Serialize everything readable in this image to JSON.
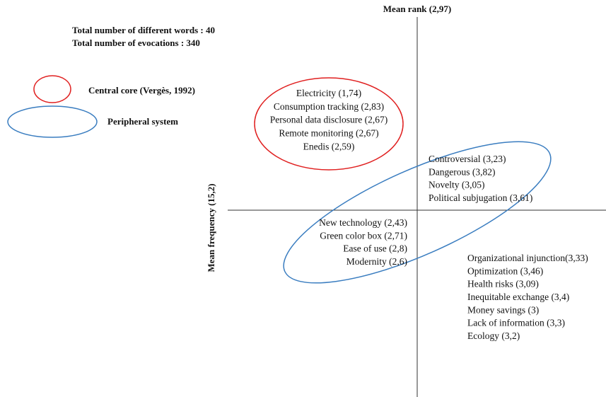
{
  "header": {
    "lines": [
      "Total number of different words : 40",
      "Total number of evocations : 340"
    ]
  },
  "legend": [
    {
      "label": "Central core (Vergès, 1992)"
    },
    {
      "label": "Peripheral system"
    }
  ],
  "axes": {
    "x_label": "Mean rank (2,97)",
    "y_label": "Mean frequency (15,2)"
  },
  "quadrants": [
    {
      "items": [
        "Electricity (1,74)",
        "Consumption tracking (2,83)",
        "Personal data disclosure (2,67)",
        "Remote monitoring (2,67)",
        "Enedis (2,59)"
      ]
    },
    {
      "items": [
        "Controversial (3,23)",
        "Dangerous (3,82)",
        "Novelty (3,05)",
        "Political subjugation (3,61)"
      ]
    },
    {
      "items": [
        "New technology (2,43)",
        "Green color box (2,71)",
        "Ease of use (2,8)",
        "Modernity (2,6)"
      ]
    },
    {
      "items": [
        "Organizational injunction(3,33)",
        "Optimization (3,46)",
        "Health risks (3,09)",
        "Inequitable exchange (3,4)",
        "Money savings (3)",
        "Lack of information (3,3)",
        "Ecology (3,2)"
      ]
    }
  ]
}
